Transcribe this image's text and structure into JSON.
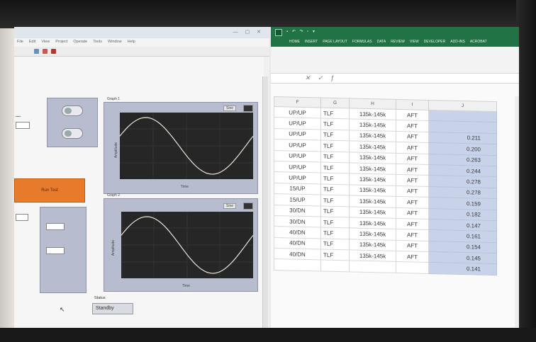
{
  "labview": {
    "title": "",
    "menu": [
      "File",
      "Edit",
      "View",
      "Project",
      "Operate",
      "Tools",
      "Window",
      "Help"
    ],
    "run_button_label": "Run Test",
    "graph1": {
      "title": "Graph 1",
      "legend": "Sine",
      "xlabel": "Time",
      "ylabel": "Amplitude"
    },
    "graph2": {
      "title": "Graph 2",
      "legend": "Sine",
      "xlabel": "Time",
      "ylabel": "Amplitude"
    },
    "status": {
      "label": "Status",
      "value": "Standby"
    }
  },
  "excel": {
    "ribbon_tabs": [
      "HOME",
      "INSERT",
      "PAGE LAYOUT",
      "FORMULAS",
      "DATA",
      "REVIEW",
      "VIEW",
      "DEVELOPER",
      "ADD-INS",
      "ACROBAT"
    ],
    "columns": [
      "F",
      "G",
      "H",
      "I",
      "J"
    ],
    "rows": [
      {
        "f": "UP/UP",
        "g": "TLF",
        "h": "135k-145k",
        "i": "AFT",
        "j": ""
      },
      {
        "f": "UP/UP",
        "g": "TLF",
        "h": "135k-145k",
        "i": "AFT",
        "j": ""
      },
      {
        "f": "UP/UP",
        "g": "TLF",
        "h": "135k-145k",
        "i": "AFT",
        "j": "0.211"
      },
      {
        "f": "UP/UP",
        "g": "TLF",
        "h": "135k-145k",
        "i": "AFT",
        "j": "0.200"
      },
      {
        "f": "UP/UP",
        "g": "TLF",
        "h": "135k-145k",
        "i": "AFT",
        "j": "0.263"
      },
      {
        "f": "UP/UP",
        "g": "TLF",
        "h": "135k-145k",
        "i": "AFT",
        "j": "0.244"
      },
      {
        "f": "UP/UP",
        "g": "TLF",
        "h": "135k-145k",
        "i": "AFT",
        "j": "0.278"
      },
      {
        "f": "15/UP",
        "g": "TLF",
        "h": "135k-145k",
        "i": "AFT",
        "j": "0.278"
      },
      {
        "f": "15/UP",
        "g": "TLF",
        "h": "135k-145k",
        "i": "AFT",
        "j": "0.159"
      },
      {
        "f": "30/DN",
        "g": "TLF",
        "h": "135k-145k",
        "i": "AFT",
        "j": "0.182"
      },
      {
        "f": "30/DN",
        "g": "TLF",
        "h": "135k-145k",
        "i": "AFT",
        "j": "0.147"
      },
      {
        "f": "40/DN",
        "g": "TLF",
        "h": "135k-145k",
        "i": "AFT",
        "j": "0.161"
      },
      {
        "f": "40/DN",
        "g": "TLF",
        "h": "135k-145k",
        "i": "AFT",
        "j": "0.154"
      },
      {
        "f": "40/DN",
        "g": "TLF",
        "h": "135k-145k",
        "i": "AFT",
        "j": "0.145"
      },
      {
        "f": "",
        "g": "",
        "h": "",
        "i": "",
        "j": "0.141"
      }
    ]
  },
  "colors": {
    "excel_green": "#217346",
    "run_button": "#e87a2c",
    "panel_blue": "#b7bccf",
    "selected_cells": "#c8d3ea"
  }
}
